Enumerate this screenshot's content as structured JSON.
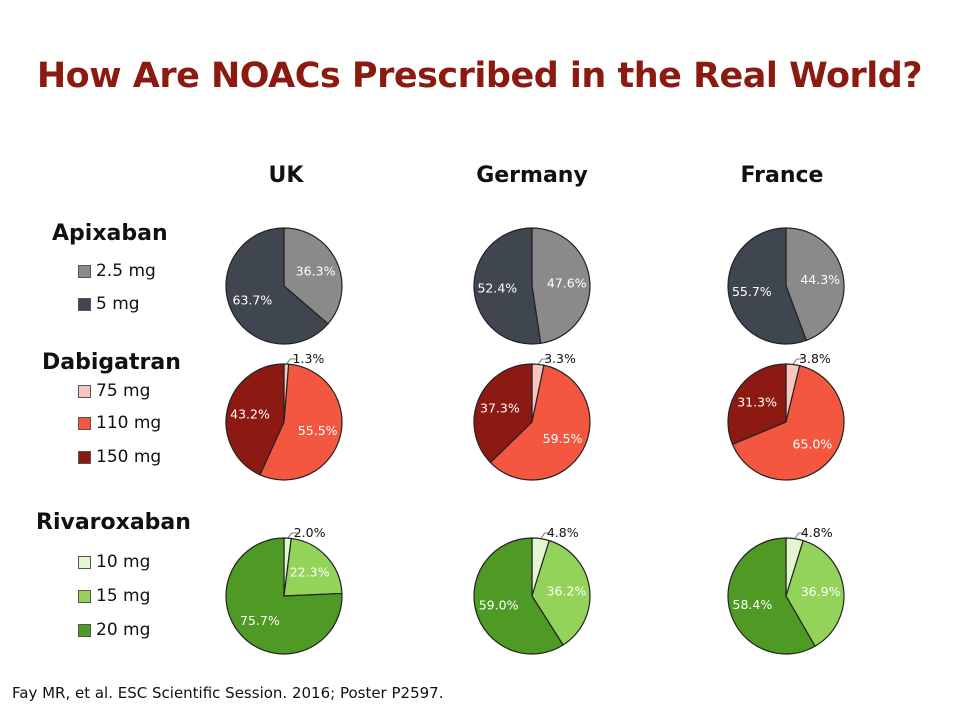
{
  "title": "How Are NOACs Prescribed in the Real World?",
  "citation": "Fay MR, et al. ESC Scientific Session. 2016; Poster P2597.",
  "countries": [
    "UK",
    "Germany",
    "France"
  ],
  "drugs": [
    {
      "name": "Apixaban",
      "legend": [
        {
          "label": "2.5 mg",
          "color": "#8a8a8a"
        },
        {
          "label": "5 mg",
          "color": "#3f4650"
        }
      ]
    },
    {
      "name": "Dabigatran",
      "legend": [
        {
          "label": "75 mg",
          "color": "#f7c6c0"
        },
        {
          "label": "110 mg",
          "color": "#f4573f"
        },
        {
          "label": "150 mg",
          "color": "#8c1a12"
        }
      ]
    },
    {
      "name": "Rivaroxaban",
      "legend": [
        {
          "label": "10 mg",
          "color": "#e2f7cf"
        },
        {
          "label": "15 mg",
          "color": "#93d35a"
        },
        {
          "label": "20 mg",
          "color": "#4f9a25"
        }
      ]
    }
  ],
  "chart_data": [
    {
      "type": "pie",
      "drug": "Apixaban",
      "country": "UK",
      "labels": [
        "2.5 mg",
        "5 mg"
      ],
      "values": [
        36.3,
        63.7
      ],
      "value_labels": [
        "36.3%",
        "63.7%"
      ]
    },
    {
      "type": "pie",
      "drug": "Apixaban",
      "country": "Germany",
      "labels": [
        "2.5 mg",
        "5 mg"
      ],
      "values": [
        47.6,
        52.4
      ],
      "value_labels": [
        "47.6%",
        "52.4%"
      ]
    },
    {
      "type": "pie",
      "drug": "Apixaban",
      "country": "France",
      "labels": [
        "2.5 mg",
        "5 mg"
      ],
      "values": [
        44.3,
        55.7
      ],
      "value_labels": [
        "44.3%",
        "55.7%"
      ]
    },
    {
      "type": "pie",
      "drug": "Dabigatran",
      "country": "UK",
      "labels": [
        "75 mg",
        "110 mg",
        "150 mg"
      ],
      "values": [
        1.3,
        55.5,
        43.2
      ],
      "value_labels": [
        "1.3%",
        "55.5%",
        "43.2%"
      ]
    },
    {
      "type": "pie",
      "drug": "Dabigatran",
      "country": "Germany",
      "labels": [
        "75 mg",
        "110 mg",
        "150 mg"
      ],
      "values": [
        3.3,
        59.5,
        37.3
      ],
      "value_labels": [
        "3.3%",
        "59.5%",
        "37.3%"
      ]
    },
    {
      "type": "pie",
      "drug": "Dabigatran",
      "country": "France",
      "labels": [
        "75 mg",
        "110 mg",
        "150 mg"
      ],
      "values": [
        3.8,
        65.0,
        31.3
      ],
      "value_labels": [
        "3.8%",
        "65.0%",
        "31.3%"
      ]
    },
    {
      "type": "pie",
      "drug": "Rivaroxaban",
      "country": "UK",
      "labels": [
        "10 mg",
        "15 mg",
        "20 mg"
      ],
      "values": [
        2.0,
        22.3,
        75.7
      ],
      "value_labels": [
        "2.0%",
        "22.3%",
        "75.7%"
      ]
    },
    {
      "type": "pie",
      "drug": "Rivaroxaban",
      "country": "Germany",
      "labels": [
        "10 mg",
        "15 mg",
        "20 mg"
      ],
      "values": [
        4.8,
        36.2,
        59.0
      ],
      "value_labels": [
        "4.8%",
        "36.2%",
        "59.0%"
      ]
    },
    {
      "type": "pie",
      "drug": "Rivaroxaban",
      "country": "France",
      "labels": [
        "10 mg",
        "15 mg",
        "20 mg"
      ],
      "values": [
        4.8,
        36.9,
        58.4
      ],
      "value_labels": [
        "4.8%",
        "36.9%",
        "58.4%"
      ]
    }
  ]
}
